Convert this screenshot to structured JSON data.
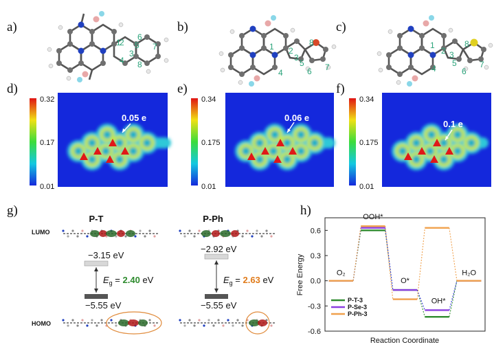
{
  "panel_labels": [
    "a)",
    "b)",
    "c)",
    "d)",
    "e)",
    "f)",
    "g)",
    "h)"
  ],
  "molecules": [
    {
      "numbers": [
        "1",
        "2",
        "3",
        "4",
        "5",
        "6",
        "7",
        "8"
      ]
    },
    {
      "numbers": [
        "1",
        "2",
        "3",
        "4",
        "5",
        "6",
        "7",
        "8"
      ]
    },
    {
      "numbers": [
        "1",
        "2",
        "3",
        "4",
        "5",
        "6",
        "7",
        "8"
      ]
    }
  ],
  "charge_maps": [
    {
      "colorbar_max": "0.32",
      "colorbar_mid": "0.17",
      "colorbar_min": "0.01",
      "annotation": "0.05 e"
    },
    {
      "colorbar_max": "0.34",
      "colorbar_mid": "0.175",
      "colorbar_min": "0.01",
      "annotation": "0.06 e"
    },
    {
      "colorbar_max": "0.34",
      "colorbar_mid": "0.175",
      "colorbar_min": "0.01",
      "annotation": "0.1 e"
    }
  ],
  "orbitals": {
    "lumo_label": "LUMO",
    "homo_label": "HOMO",
    "systems": [
      {
        "title": "P-T",
        "lumo": "−3.15 eV",
        "homo": "−5.55 eV",
        "eg_symbol": "E",
        "eg_sub": "g",
        "eg_eq": " = ",
        "eg_value": "2.40",
        "eg_unit": " eV",
        "eg_color": "#2e8b2e"
      },
      {
        "title": "P-Ph",
        "lumo": "−2.92 eV",
        "homo": "−5.55 eV",
        "eg_symbol": "E",
        "eg_sub": "g",
        "eg_eq": " = ",
        "eg_value": "2.63",
        "eg_unit": " eV",
        "eg_color": "#e07b1a"
      }
    ]
  },
  "chart_data": {
    "type": "line",
    "title": "",
    "xlabel": "Reaction Coordinate",
    "ylabel": "Free Energy",
    "ylim": [
      -0.6,
      0.75
    ],
    "yticks": [
      "0.6",
      "0.3",
      "0.0",
      "-0.3",
      "-0.6"
    ],
    "ytick_values": [
      0.6,
      0.3,
      0.0,
      -0.3,
      -0.6
    ],
    "steps": [
      "O₂",
      "OOH*",
      "O*",
      "OH*",
      "H₂O"
    ],
    "series": [
      {
        "name": "P-T-3",
        "color": "#2e8b2e",
        "values": [
          0.0,
          0.6,
          -0.11,
          -0.43,
          0.0
        ]
      },
      {
        "name": "P-Se-3",
        "color": "#8a3ee0",
        "values": [
          0.0,
          0.63,
          -0.11,
          -0.35,
          0.0
        ]
      },
      {
        "name": "P-Ph-3",
        "color": "#f0a04b",
        "values": [
          0.0,
          0.65,
          -0.22,
          0.63,
          0.0
        ]
      }
    ],
    "connector_series": [
      {
        "name": "P-T-3",
        "color": "#2e8b2e"
      },
      {
        "name": "P-Se-3",
        "color": "#3a3ae0"
      },
      {
        "name": "P-Ph-3",
        "color": "#f0a04b"
      }
    ],
    "step_label_items": [
      {
        "text": "O₂",
        "anchor": 0
      },
      {
        "text": "OOH*",
        "anchor": 1
      },
      {
        "text": "O*",
        "anchor": 2
      },
      {
        "text": "OH*",
        "anchor": 3
      },
      {
        "text": "H₂O",
        "anchor": 4
      }
    ],
    "legend": "bottom-left",
    "grid": false
  },
  "colors": {
    "map_bg": "#1428dc",
    "bar_top": "#d01818",
    "carbon": "#6f6f6f",
    "hydrogen": "#e8e8e8",
    "nitrogen": "#2040c0",
    "boron": "#e8a8a8",
    "fluorine": "#8ad7e8",
    "sulfur": "#e0d020",
    "orange_ring": "#e08a3a"
  }
}
